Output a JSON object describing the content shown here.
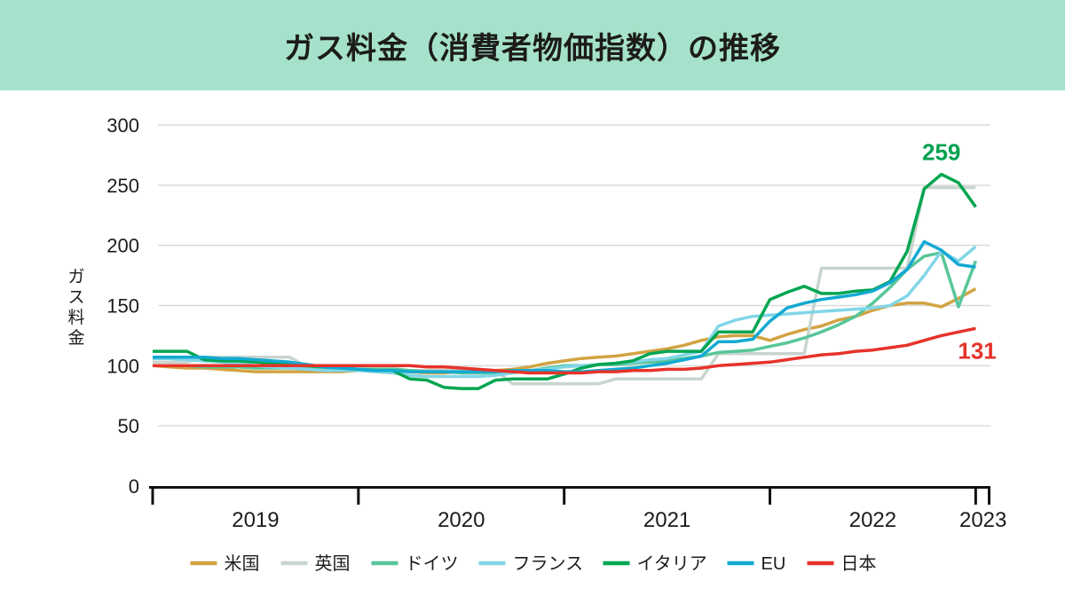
{
  "header": {
    "title": "ガス料金（消費者物価指数）の推移"
  },
  "style": {
    "header_bg": "#a6e2cb",
    "grid_color": "#d9dcd9",
    "axis_color": "#111111",
    "text_color": "#1c1c1c"
  },
  "chart_data": {
    "type": "line",
    "title": "ガス料金（消費者物価指数）の推移",
    "xlabel": "",
    "ylabel": "ガス料金",
    "ylim": [
      0,
      300
    ],
    "yticks": [
      0,
      50,
      100,
      150,
      200,
      250,
      300
    ],
    "xtick_labels": [
      "2019",
      "2020",
      "2021",
      "2022",
      "2023"
    ],
    "x_monthly_start": "2019-01",
    "x_monthly_end": "2023-01",
    "grid": "horizontal-only",
    "legend_position": "bottom",
    "series": [
      {
        "name": "米国",
        "color": "#d2a342",
        "values": [
          100,
          99,
          98,
          98,
          97,
          96,
          95,
          95,
          95,
          95,
          95,
          95,
          96,
          96,
          96,
          95,
          94,
          94,
          95,
          95,
          96,
          97,
          99,
          102,
          104,
          106,
          107,
          108,
          110,
          112,
          114,
          117,
          121,
          124,
          125,
          125,
          121,
          126,
          130,
          133,
          138,
          141,
          146,
          150,
          152,
          152,
          149,
          156,
          164
        ]
      },
      {
        "name": "英国",
        "color": "#c8d5ce",
        "values": [
          103,
          103,
          103,
          107,
          107,
          107,
          107,
          107,
          107,
          99,
          99,
          99,
          98,
          98,
          98,
          96,
          96,
          96,
          96,
          96,
          96,
          85,
          85,
          85,
          85,
          85,
          85,
          89,
          89,
          89,
          89,
          89,
          89,
          110,
          110,
          110,
          110,
          110,
          110,
          181,
          181,
          181,
          181,
          181,
          181,
          248,
          248,
          248,
          248
        ]
      },
      {
        "name": "ドイツ",
        "color": "#57c699",
        "values": [
          100,
          100,
          100,
          99,
          99,
          99,
          98,
          98,
          98,
          98,
          98,
          98,
          97,
          97,
          97,
          96,
          95,
          95,
          94,
          94,
          94,
          95,
          96,
          98,
          100,
          100,
          101,
          101,
          102,
          103,
          104,
          106,
          108,
          111,
          112,
          113,
          116,
          119,
          123,
          128,
          134,
          141,
          152,
          165,
          180,
          191,
          194,
          149,
          187
        ]
      },
      {
        "name": "フランス",
        "color": "#82d6e8",
        "values": [
          106,
          106,
          105,
          104,
          103,
          102,
          100,
          99,
          98,
          97,
          96,
          96,
          96,
          95,
          94,
          92,
          91,
          91,
          91,
          91,
          92,
          94,
          96,
          97,
          99,
          100,
          101,
          102,
          103,
          105,
          106,
          109,
          112,
          133,
          138,
          141,
          142,
          143,
          144,
          145,
          146,
          147,
          148,
          150,
          158,
          175,
          195,
          187,
          199
        ]
      },
      {
        "name": "イタリア",
        "color": "#00a551",
        "values": [
          112,
          112,
          112,
          105,
          104,
          104,
          103,
          102,
          101,
          100,
          99,
          98,
          97,
          96,
          96,
          89,
          88,
          82,
          81,
          81,
          88,
          89,
          89,
          89,
          93,
          98,
          101,
          102,
          104,
          110,
          112,
          112,
          112,
          128,
          128,
          128,
          155,
          161,
          166,
          160,
          160,
          162,
          163,
          170,
          195,
          247,
          259,
          252,
          232
        ]
      },
      {
        "name": "EU",
        "color": "#12a9d2",
        "values": [
          107,
          107,
          107,
          107,
          106,
          106,
          105,
          104,
          103,
          101,
          99,
          98,
          97,
          96,
          96,
          95,
          95,
          95,
          95,
          95,
          95,
          96,
          96,
          96,
          95,
          95,
          96,
          97,
          98,
          100,
          102,
          105,
          108,
          120,
          120,
          122,
          137,
          148,
          152,
          155,
          157,
          159,
          162,
          169,
          180,
          203,
          196,
          184,
          182
        ]
      },
      {
        "name": "日本",
        "color": "#e6332a",
        "values": [
          100,
          100,
          100,
          100,
          100,
          100,
          100,
          100,
          100,
          100,
          100,
          100,
          100,
          100,
          100,
          100,
          99,
          99,
          98,
          97,
          96,
          95,
          94,
          94,
          94,
          94,
          95,
          95,
          96,
          96,
          97,
          97,
          98,
          100,
          101,
          102,
          103,
          105,
          107,
          109,
          110,
          112,
          113,
          115,
          117,
          121,
          125,
          128,
          131
        ]
      }
    ],
    "annotations": [
      {
        "text": "259",
        "series": "イタリア",
        "attach": "max",
        "color": "#00a24f"
      },
      {
        "text": "131",
        "series": "日本",
        "attach": "end",
        "color": "#e6332a"
      }
    ]
  }
}
